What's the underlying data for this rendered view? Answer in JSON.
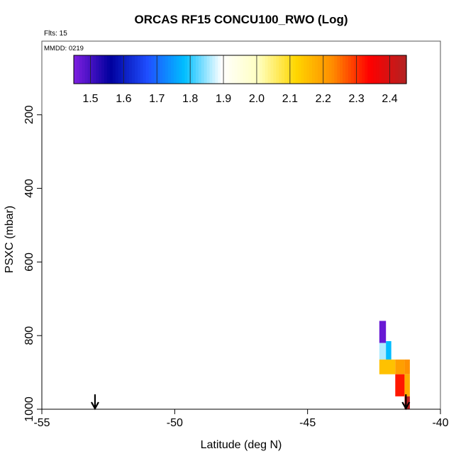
{
  "title": "ORCAS RF15 CONCU100_RWO (Log)",
  "flights_label": "Flts: 15",
  "date_label": "MMDD: 0219",
  "chart_data": {
    "type": "heatmap",
    "title": "ORCAS RF15 CONCU100_RWO (Log)",
    "xlabel": "Latitude (deg N)",
    "ylabel": "PSXC (mbar)",
    "xlim": [
      -55,
      -40
    ],
    "ylim": [
      1000,
      0
    ],
    "x_ticks": [
      -55,
      -50,
      -45,
      -40
    ],
    "y_ticks": [
      200,
      400,
      600,
      800,
      1000
    ],
    "grid": false,
    "colorbar": {
      "range": [
        1.45,
        2.45
      ],
      "ticks": [
        1.5,
        1.6,
        1.7,
        1.8,
        1.9,
        2.0,
        2.1,
        2.2,
        2.3,
        2.4
      ],
      "colors": [
        "#7f1fe0",
        "#00009e",
        "#1f4fff",
        "#00bfff",
        "#ffffff",
        "#ffffc0",
        "#ffd700",
        "#ff8c00",
        "#ff0000",
        "#b22222"
      ]
    },
    "markers": [
      {
        "type": "arrow-down",
        "x": -53.0
      },
      {
        "type": "arrow-down",
        "x": -41.3
      }
    ],
    "cells": [
      {
        "x0": -42.3,
        "x1": -42.05,
        "p0": 760,
        "p1": 820,
        "value": 1.47
      },
      {
        "x0": -42.3,
        "x1": -42.05,
        "p0": 820,
        "p1": 865,
        "value": 1.86
      },
      {
        "x0": -42.05,
        "x1": -41.85,
        "p0": 815,
        "p1": 865,
        "value": 1.78
      },
      {
        "x0": -42.3,
        "x1": -41.7,
        "p0": 865,
        "p1": 905,
        "value": 2.15
      },
      {
        "x0": -41.7,
        "x1": -41.35,
        "p0": 865,
        "p1": 905,
        "value": 2.2
      },
      {
        "x0": -41.35,
        "x1": -41.15,
        "p0": 865,
        "p1": 905,
        "value": 2.22
      },
      {
        "x0": -41.7,
        "x1": -41.35,
        "p0": 905,
        "p1": 965,
        "value": 2.32
      },
      {
        "x0": -41.35,
        "x1": -41.15,
        "p0": 905,
        "p1": 965,
        "value": 2.18
      },
      {
        "x0": -41.35,
        "x1": -41.15,
        "p0": 965,
        "p1": 1000,
        "value": 2.44
      }
    ]
  }
}
